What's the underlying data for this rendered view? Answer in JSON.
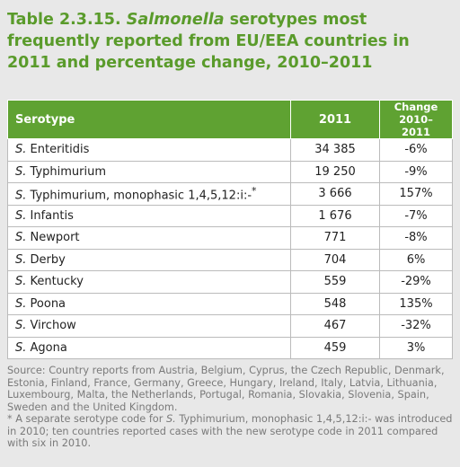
{
  "title": {
    "label": "Table 2.3.15.",
    "italic": "Salmonella",
    "rest": "serotypes most frequently reported from EU/EEA countries in 2011 and percentage change, 2010–2011"
  },
  "table": {
    "header": [
      "Serotype",
      "2011",
      "Change",
      "2010–2011"
    ],
    "rows": [
      [
        "S.",
        "Enteritidis",
        "34 385",
        "-6%"
      ],
      [
        "S.",
        "Typhimurium",
        "19 250",
        "-9%"
      ],
      [
        "S.",
        "Typhimurium, monophasic 1,4,5,12:i:-",
        "3 666",
        "157%"
      ],
      [
        "S.",
        "Infantis",
        "1 676",
        "-7%"
      ],
      [
        "S.",
        "Newport",
        "771",
        "-8%"
      ],
      [
        "S.",
        "Derby",
        "704",
        "6%"
      ],
      [
        "S.",
        "Kentucky",
        "559",
        "-29%"
      ],
      [
        "S.",
        "Poona",
        "548",
        "135%"
      ],
      [
        "S.",
        "Virchow",
        "467",
        "-32%"
      ],
      [
        "S.",
        "Agona",
        "459",
        "3%"
      ]
    ],
    "note_marker": "*"
  },
  "footer": {
    "source": "Source: Country reports from Austria, Belgium, Cyprus, the Czech Republic, Denmark, Estonia, Finland, France, Germany, Greece, Hungary, Ireland, Italy, Latvia, Lithuania, Luxembourg, Malta, the Netherlands, Portugal, Romania, Slovakia, Slovenia, Spain, Sweden and the United Kingdom.",
    "note": [
      "* A separate serotype code for ",
      "S.",
      " Typhimurium, monophasic 1,4,5,12:i:- was introduced in 2010; ten countries reported cases with the new serotype code in 2011 compared with six in 2010."
    ]
  }
}
